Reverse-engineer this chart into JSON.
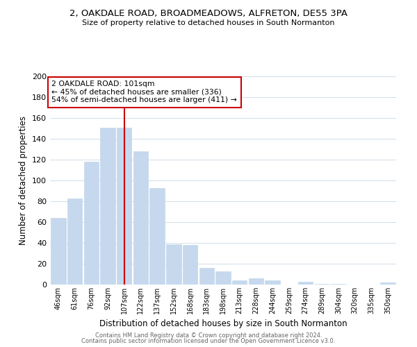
{
  "title1": "2, OAKDALE ROAD, BROADMEADOWS, ALFRETON, DE55 3PA",
  "title2": "Size of property relative to detached houses in South Normanton",
  "xlabel": "Distribution of detached houses by size in South Normanton",
  "ylabel": "Number of detached properties",
  "categories": [
    "46sqm",
    "61sqm",
    "76sqm",
    "92sqm",
    "107sqm",
    "122sqm",
    "137sqm",
    "152sqm",
    "168sqm",
    "183sqm",
    "198sqm",
    "213sqm",
    "228sqm",
    "244sqm",
    "259sqm",
    "274sqm",
    "289sqm",
    "304sqm",
    "320sqm",
    "335sqm",
    "350sqm"
  ],
  "values": [
    64,
    83,
    118,
    151,
    151,
    128,
    93,
    39,
    38,
    16,
    13,
    4,
    6,
    4,
    0,
    3,
    1,
    1,
    0,
    0,
    2
  ],
  "bar_color": "#c5d8ed",
  "highlight_line_color": "#cc0000",
  "highlight_bar_index": 4,
  "ylim": [
    0,
    200
  ],
  "yticks": [
    0,
    20,
    40,
    60,
    80,
    100,
    120,
    140,
    160,
    180,
    200
  ],
  "annotation_title": "2 OAKDALE ROAD: 101sqm",
  "annotation_line1": "← 45% of detached houses are smaller (336)",
  "annotation_line2": "54% of semi-detached houses are larger (411) →",
  "annotation_box_color": "#ffffff",
  "annotation_box_edge": "#cc0000",
  "footer1": "Contains HM Land Registry data © Crown copyright and database right 2024.",
  "footer2": "Contains public sector information licensed under the Open Government Licence v3.0.",
  "background_color": "#ffffff",
  "grid_color": "#d0dde8"
}
